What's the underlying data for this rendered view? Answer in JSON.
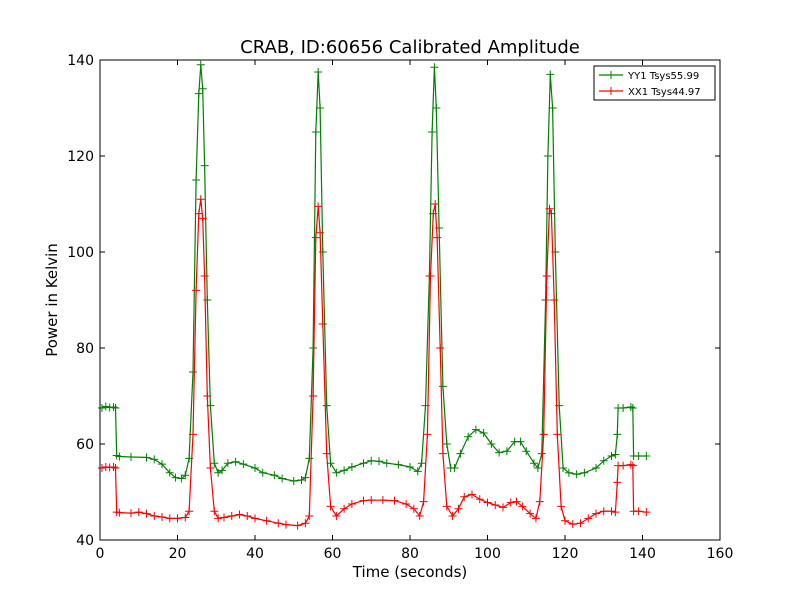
{
  "chart_data": {
    "type": "line",
    "title": "CRAB, ID:60656 Calibrated Amplitude",
    "xlabel": "Time (seconds)",
    "ylabel": "Power in Kelvin",
    "xlim": [
      0,
      160
    ],
    "ylim": [
      40,
      140
    ],
    "xticks": [
      0,
      20,
      40,
      60,
      80,
      100,
      120,
      140,
      160
    ],
    "yticks": [
      40,
      60,
      80,
      100,
      120,
      140
    ],
    "grid": false,
    "legend_position": "top-right",
    "series": [
      {
        "name": "YY1 Tsys55.99",
        "color": "#008000",
        "marker": "plus",
        "points": [
          [
            0.5,
            67.5
          ],
          [
            1.5,
            67.8
          ],
          [
            2.5,
            67.6
          ],
          [
            3.5,
            67.7
          ],
          [
            4.0,
            67.5
          ],
          [
            4.3,
            57.6
          ],
          [
            5,
            57.4
          ],
          [
            8,
            57.3
          ],
          [
            12,
            57.2
          ],
          [
            14,
            56.8
          ],
          [
            16,
            55.8
          ],
          [
            18,
            54
          ],
          [
            19.5,
            53
          ],
          [
            21,
            52.8
          ],
          [
            22,
            53.5
          ],
          [
            23,
            57
          ],
          [
            24,
            75
          ],
          [
            24.8,
            115
          ],
          [
            25.5,
            133
          ],
          [
            26,
            139
          ],
          [
            26.5,
            134
          ],
          [
            27,
            118
          ],
          [
            27.7,
            90
          ],
          [
            28.5,
            68
          ],
          [
            29.5,
            56
          ],
          [
            30.5,
            54
          ],
          [
            31.5,
            54.5
          ],
          [
            33,
            56
          ],
          [
            35,
            56.3
          ],
          [
            37,
            55.8
          ],
          [
            40,
            55
          ],
          [
            42,
            54
          ],
          [
            45,
            53.5
          ],
          [
            47,
            52.8
          ],
          [
            50,
            52.3
          ],
          [
            52,
            52.5
          ],
          [
            53,
            53
          ],
          [
            54,
            57
          ],
          [
            55,
            80
          ],
          [
            55.7,
            125
          ],
          [
            56.3,
            137.5
          ],
          [
            56.8,
            130
          ],
          [
            57.5,
            100
          ],
          [
            58.5,
            68
          ],
          [
            59.5,
            56
          ],
          [
            61,
            54
          ],
          [
            63,
            54.5
          ],
          [
            65,
            55.2
          ],
          [
            68,
            56
          ],
          [
            70,
            56.5
          ],
          [
            72,
            56.4
          ],
          [
            74,
            56
          ],
          [
            77,
            55.7
          ],
          [
            80,
            55.2
          ],
          [
            82,
            54.3
          ],
          [
            83,
            56
          ],
          [
            84,
            68
          ],
          [
            85,
            95
          ],
          [
            85.7,
            125
          ],
          [
            86.3,
            138.5
          ],
          [
            86.8,
            130
          ],
          [
            87.5,
            105
          ],
          [
            88.5,
            72
          ],
          [
            89.5,
            60
          ],
          [
            90.5,
            55
          ],
          [
            91.5,
            55
          ],
          [
            93,
            58
          ],
          [
            95,
            61.5
          ],
          [
            97,
            63
          ],
          [
            99,
            62.3
          ],
          [
            101,
            60
          ],
          [
            103,
            58.2
          ],
          [
            105,
            58.5
          ],
          [
            107,
            60.5
          ],
          [
            108.5,
            60.5
          ],
          [
            110,
            58.5
          ],
          [
            112,
            56
          ],
          [
            113,
            55
          ],
          [
            114,
            58
          ],
          [
            115,
            90
          ],
          [
            115.6,
            120
          ],
          [
            116.2,
            137
          ],
          [
            116.8,
            130
          ],
          [
            117.5,
            100
          ],
          [
            118.5,
            68
          ],
          [
            119.5,
            55
          ],
          [
            121,
            54
          ],
          [
            123,
            53.7
          ],
          [
            125,
            54
          ],
          [
            128,
            55
          ],
          [
            130,
            56.5
          ],
          [
            132,
            57.5
          ],
          [
            133,
            57.8
          ],
          [
            133.5,
            62
          ],
          [
            133.7,
            67.5
          ],
          [
            135,
            67.5
          ],
          [
            137,
            67.7
          ],
          [
            137.5,
            67.5
          ],
          [
            137.7,
            57.5
          ],
          [
            139,
            57.5
          ],
          [
            141,
            57.5
          ]
        ]
      },
      {
        "name": "XX1 Tsys44.97",
        "color": "#ff0000",
        "marker": "plus",
        "points": [
          [
            0.5,
            55
          ],
          [
            1.5,
            55.2
          ],
          [
            2.5,
            55.1
          ],
          [
            3.5,
            55.2
          ],
          [
            4.0,
            55
          ],
          [
            4.3,
            45.8
          ],
          [
            5,
            45.7
          ],
          [
            8,
            45.6
          ],
          [
            10,
            45.8
          ],
          [
            12,
            45.5
          ],
          [
            14,
            45
          ],
          [
            16,
            44.8
          ],
          [
            18,
            44.5
          ],
          [
            20,
            44.5
          ],
          [
            22,
            44.7
          ],
          [
            23,
            46
          ],
          [
            24,
            62
          ],
          [
            24.8,
            92
          ],
          [
            25.5,
            108
          ],
          [
            26,
            111
          ],
          [
            26.5,
            107
          ],
          [
            27,
            95
          ],
          [
            27.7,
            70
          ],
          [
            28.5,
            55
          ],
          [
            29.5,
            46
          ],
          [
            30.5,
            44.5
          ],
          [
            32,
            44.7
          ],
          [
            34,
            45
          ],
          [
            36,
            45.3
          ],
          [
            38,
            45
          ],
          [
            40,
            44.5
          ],
          [
            43,
            44
          ],
          [
            46,
            43.5
          ],
          [
            48,
            43.2
          ],
          [
            51,
            43
          ],
          [
            53,
            43.5
          ],
          [
            54,
            45
          ],
          [
            55,
            70
          ],
          [
            55.7,
            103
          ],
          [
            56.3,
            109.5
          ],
          [
            56.8,
            104
          ],
          [
            57.5,
            85
          ],
          [
            58.5,
            58
          ],
          [
            59.5,
            47
          ],
          [
            61,
            45
          ],
          [
            63,
            46.5
          ],
          [
            65,
            47.5
          ],
          [
            68,
            48.2
          ],
          [
            70,
            48.3
          ],
          [
            73,
            48.3
          ],
          [
            76,
            48.2
          ],
          [
            79,
            47.5
          ],
          [
            81,
            46.5
          ],
          [
            82.5,
            45
          ],
          [
            83.5,
            48
          ],
          [
            84.5,
            62
          ],
          [
            85.3,
            95
          ],
          [
            86,
            108
          ],
          [
            86.5,
            110
          ],
          [
            87,
            103
          ],
          [
            87.8,
            80
          ],
          [
            88.5,
            58
          ],
          [
            89.5,
            47
          ],
          [
            91,
            45
          ],
          [
            92.5,
            46.5
          ],
          [
            94,
            49
          ],
          [
            96,
            49.5
          ],
          [
            98,
            48.5
          ],
          [
            100,
            47.8
          ],
          [
            102,
            47.3
          ],
          [
            104,
            46.8
          ],
          [
            106,
            47.8
          ],
          [
            107.5,
            48
          ],
          [
            109,
            47
          ],
          [
            111,
            45.5
          ],
          [
            112.5,
            44.5
          ],
          [
            113.5,
            48
          ],
          [
            114.5,
            62
          ],
          [
            115.3,
            95
          ],
          [
            116,
            109
          ],
          [
            116.5,
            108
          ],
          [
            117.2,
            90
          ],
          [
            118,
            62
          ],
          [
            119,
            47
          ],
          [
            120,
            44
          ],
          [
            122,
            43.3
          ],
          [
            124,
            43.5
          ],
          [
            126,
            44.5
          ],
          [
            128,
            45.5
          ],
          [
            130,
            46
          ],
          [
            132,
            46
          ],
          [
            133,
            45.8
          ],
          [
            133.5,
            52
          ],
          [
            133.7,
            55.5
          ],
          [
            135,
            55.5
          ],
          [
            137,
            55.7
          ],
          [
            137.5,
            55.5
          ],
          [
            137.7,
            46
          ],
          [
            139,
            46
          ],
          [
            141,
            45.8
          ]
        ]
      }
    ]
  }
}
